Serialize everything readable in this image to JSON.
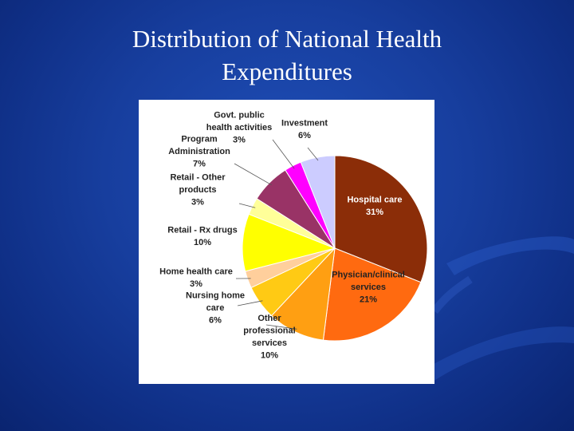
{
  "slide": {
    "title_line1": "Distribution of National Health",
    "title_line2": "Expenditures"
  },
  "colors": {
    "background": "#1a44a6",
    "panel": "#ffffff"
  },
  "chart_data": {
    "type": "pie",
    "title": "",
    "unit": "%",
    "slices": [
      {
        "name": "Hospital care",
        "value": 31,
        "color": "#8b2d08",
        "label_lines": [
          "Hospital care",
          "31%"
        ],
        "label_color": "#ffffff",
        "inside": true
      },
      {
        "name": "Physician/clinical services",
        "value": 21,
        "color": "#ff6a10",
        "label_lines": [
          "Physician/clinical",
          "services",
          "21%"
        ],
        "label_color": "#222222",
        "inside": true
      },
      {
        "name": "Other professional services",
        "value": 10,
        "color": "#ff9f12",
        "label_lines": [
          "Other",
          "professional",
          "services",
          "10%"
        ],
        "label_color": "#222222",
        "inside": false
      },
      {
        "name": "Nursing home care",
        "value": 6,
        "color": "#ffca14",
        "label_lines": [
          "Nursing home",
          "care",
          "6%"
        ],
        "label_color": "#222222",
        "inside": false
      },
      {
        "name": "Home health care",
        "value": 3,
        "color": "#ffcf9c",
        "label_lines": [
          "Home health care",
          "3%"
        ],
        "label_color": "#222222",
        "inside": false
      },
      {
        "name": "Retail - Rx drugs",
        "value": 10,
        "color": "#ffff00",
        "label_lines": [
          "Retail - Rx drugs",
          "10%"
        ],
        "label_color": "#222222",
        "inside": false
      },
      {
        "name": "Retail - Other products",
        "value": 3,
        "color": "#ffff99",
        "label_lines": [
          "Retail - Other",
          "products",
          "3%"
        ],
        "label_color": "#222222",
        "inside": false
      },
      {
        "name": "Program Administration",
        "value": 7,
        "color": "#993366",
        "label_lines": [
          "Program",
          "Administration",
          "7%"
        ],
        "label_color": "#222222",
        "inside": false
      },
      {
        "name": "Govt. public health activities",
        "value": 3,
        "color": "#ff00ff",
        "label_lines": [
          "Govt. public",
          "health activities",
          "3%"
        ],
        "label_color": "#222222",
        "inside": false
      },
      {
        "name": "Investment",
        "value": 6,
        "color": "#ccccff",
        "label_lines": [
          "Investment",
          "6%"
        ],
        "label_color": "#222222",
        "inside": false
      }
    ]
  }
}
